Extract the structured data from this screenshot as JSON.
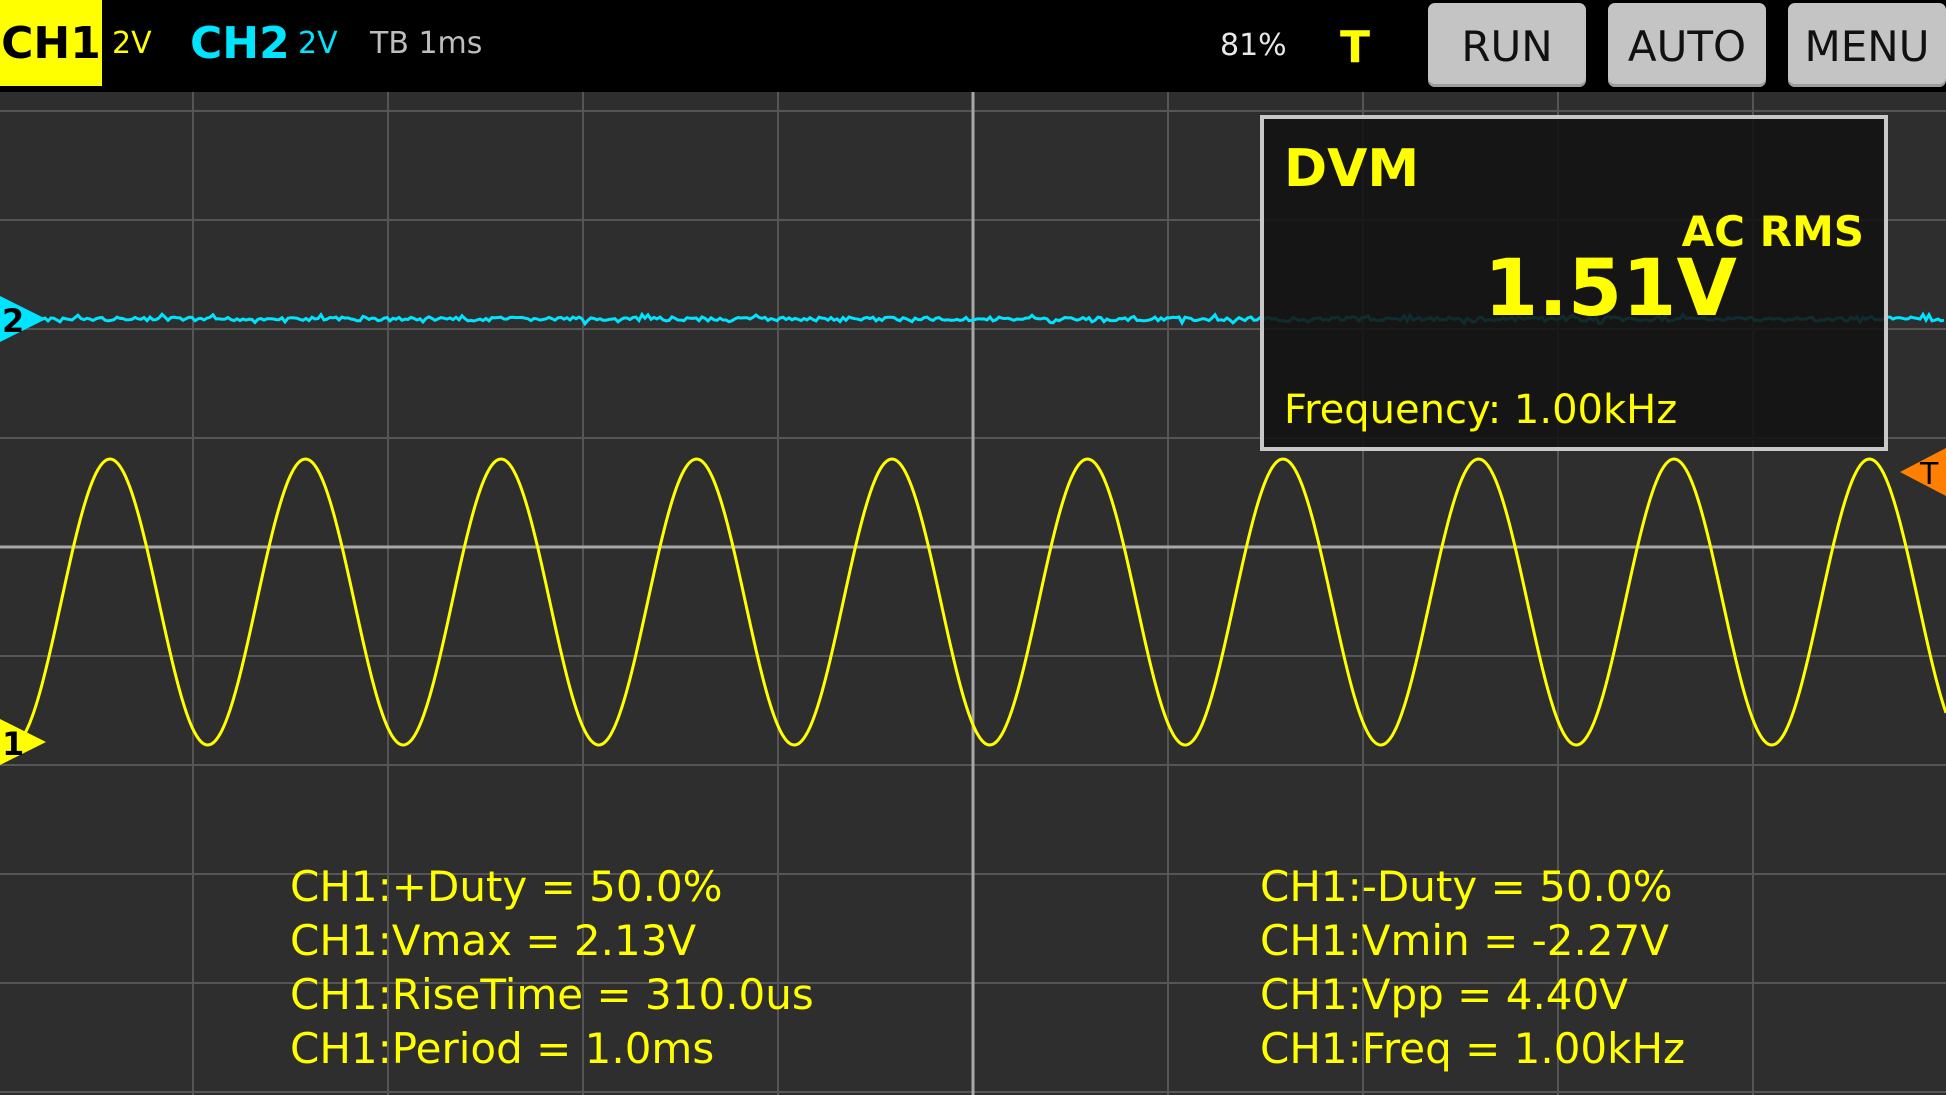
{
  "topbar": {
    "ch1_label": "CH1",
    "ch1_scale": "2V",
    "ch2_label": "CH2",
    "ch2_scale": "2V",
    "timebase": "TB 1ms",
    "battery": "81%",
    "trigger_indicator": "T",
    "run_label": "RUN",
    "auto_label": "AUTO",
    "menu_label": "MENU"
  },
  "markers": {
    "ch2": "2",
    "ch1": "1",
    "trigger": "T"
  },
  "dvm": {
    "title": "DVM",
    "mode": "AC RMS",
    "value": "1.51V",
    "frequency": "Frequency: 1.00kHz"
  },
  "measurements_left": [
    "CH1:+Duty = 50.0%",
    "CH1:Vmax = 2.13V",
    "CH1:RiseTime = 310.0us",
    "CH1:Period = 1.0ms"
  ],
  "measurements_right": [
    "CH1:-Duty = 50.0%",
    "CH1:Vmin = -2.27V",
    "CH1:Vpp = 4.40V",
    "CH1:Freq = 1.00kHz"
  ],
  "colors": {
    "ch1": "#ffff00",
    "ch2": "#00e5ff",
    "trigger": "#ff8000",
    "grid": "#555555",
    "background": "#2e2e2e"
  },
  "waveform": {
    "ch1_cycles_visible": 10,
    "ch1_shape": "sine",
    "ch2_shape": "noisy flat line"
  }
}
